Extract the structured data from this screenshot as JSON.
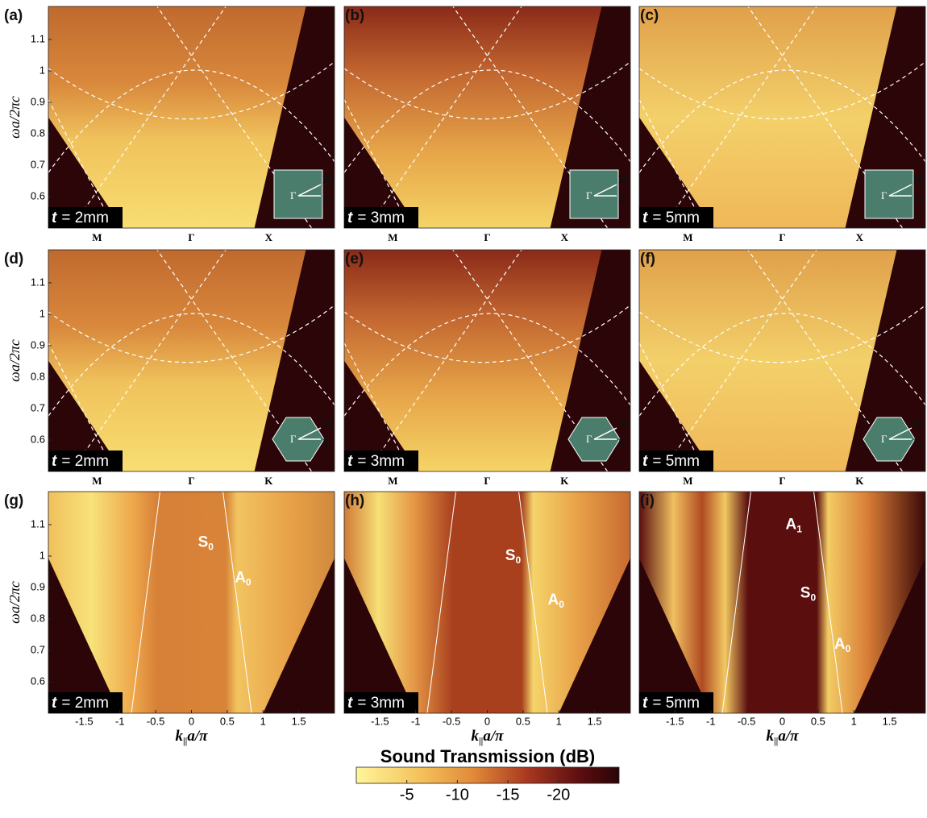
{
  "y_axis": {
    "label": "ωa/2πc",
    "lim": [
      0.5,
      1.205
    ],
    "ticks": [
      1.1,
      1,
      0.9,
      0.8,
      0.7,
      0.6
    ]
  },
  "thickness_symbol": "t",
  "rows": [
    {
      "x_labels": [
        "M",
        "Γ",
        "X"
      ],
      "inset": [
        "Γ",
        "M",
        "X"
      ]
    },
    {
      "x_labels": [
        "M",
        "Γ",
        "K"
      ],
      "inset": [
        "Γ",
        "M",
        "K"
      ]
    },
    {
      "x_axis": {
        "label": {
          "k": "k",
          "sub": "||",
          "rest": "a/π"
        },
        "lim": [
          -2,
          2
        ],
        "ticks": [
          -1.5,
          -1,
          -0.5,
          0,
          0.5,
          1,
          1.5
        ]
      }
    }
  ],
  "panels": [
    {
      "label": "(a)",
      "thickness": "= 2mm"
    },
    {
      "label": "(b)",
      "thickness": "= 3mm"
    },
    {
      "label": "(c)",
      "thickness": "= 5mm"
    },
    {
      "label": "(d)",
      "thickness": "= 2mm"
    },
    {
      "label": "(e)",
      "thickness": "= 3mm"
    },
    {
      "label": "(f)",
      "thickness": "= 5mm"
    },
    {
      "label": "(g)",
      "thickness": "= 2mm",
      "annotations": [
        {
          "base": "S",
          "sub": "0"
        },
        {
          "base": "A",
          "sub": "0"
        }
      ]
    },
    {
      "label": "(h)",
      "thickness": "= 3mm",
      "annotations": [
        {
          "base": "S",
          "sub": "0"
        },
        {
          "base": "A",
          "sub": "0"
        }
      ]
    },
    {
      "label": "(i)",
      "thickness": "= 5mm",
      "annotations": [
        {
          "base": "A",
          "sub": "1"
        },
        {
          "base": "S",
          "sub": "0"
        },
        {
          "base": "A",
          "sub": "0"
        }
      ]
    }
  ],
  "colorbar": {
    "title": "Sound Transmission (dB)",
    "lim": [
      0,
      -26
    ],
    "ticks": [
      -5,
      -10,
      -15,
      -20
    ]
  }
}
